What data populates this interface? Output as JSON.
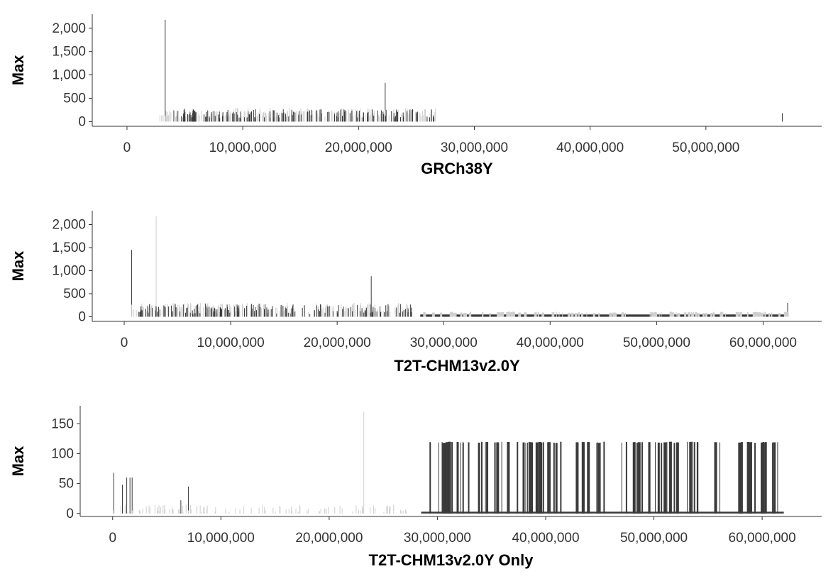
{
  "chart_data": [
    {
      "type": "bar",
      "xlabel": "GRCh38Y",
      "ylabel": "Max",
      "xlim": [
        -3000000,
        60000000
      ],
      "ylim": [
        -100,
        2300
      ],
      "x_ticks": [
        0,
        10000000,
        20000000,
        30000000,
        40000000,
        50000000
      ],
      "x_tick_labels": [
        "0",
        "10,000,000",
        "20,000,000",
        "30,000,000",
        "40,000,000",
        "50,000,000"
      ],
      "y_ticks": [
        0,
        500,
        1000,
        1500,
        2000
      ],
      "y_tick_labels": [
        "0",
        "500",
        "1,000",
        "1,500",
        "2,000"
      ],
      "grid": false,
      "colors": {
        "dark": "#3a3a3a",
        "light": "#cfcfcf"
      },
      "series": [
        {
          "x": [
            3300000,
            22300000,
            56600000
          ],
          "values": [
            2180,
            830,
            180
          ]
        },
        {
          "range": [
            2800000,
            26700000
          ],
          "count": 220,
          "min": 100,
          "max": 290,
          "seed": 11
        },
        {
          "range": [
            4000000,
            26500000
          ],
          "count": 160,
          "min": 80,
          "max": 270,
          "seed": 23
        }
      ]
    },
    {
      "type": "bar",
      "xlabel": "T2T-CHM13v2.0Y",
      "ylabel": "Max",
      "xlim": [
        -3000000,
        65500000
      ],
      "ylim": [
        -100,
        2300
      ],
      "x_ticks": [
        0,
        10000000,
        20000000,
        30000000,
        40000000,
        50000000,
        60000000
      ],
      "x_tick_labels": [
        "0",
        "10,000,000",
        "20,000,000",
        "30,000,000",
        "40,000,000",
        "50,000,000",
        "60,000,000"
      ],
      "y_ticks": [
        0,
        500,
        1000,
        1500,
        2000
      ],
      "y_tick_labels": [
        "0",
        "500",
        "1,000",
        "1,500",
        "2,000"
      ],
      "grid": false,
      "colors": {
        "dark": "#3a3a3a",
        "light": "#cfcfcf"
      },
      "series": [
        {
          "x": [
            700000,
            3000000,
            23200000,
            62300000
          ],
          "values": [
            1450,
            2180,
            880,
            300
          ]
        },
        {
          "range": [
            300000,
            27200000
          ],
          "count": 200,
          "min": 100,
          "max": 300,
          "seed": 37
        },
        {
          "range": [
            1000000,
            27200000
          ],
          "count": 160,
          "min": 60,
          "max": 280,
          "seed": 41
        },
        {
          "range": [
            27800000,
            62200000
          ],
          "baseline": 50,
          "count": 120,
          "min": 80,
          "max": 110,
          "seed": 53
        }
      ]
    },
    {
      "type": "bar",
      "xlabel": "T2T-CHM13v2.0Y Only",
      "ylabel": "Max",
      "xlim": [
        -3000000,
        65500000
      ],
      "ylim": [
        -5,
        180
      ],
      "x_ticks": [
        0,
        10000000,
        20000000,
        30000000,
        40000000,
        50000000,
        60000000
      ],
      "x_tick_labels": [
        "0",
        "10,000,000",
        "20,000,000",
        "30,000,000",
        "40,000,000",
        "50,000,000",
        "60,000,000"
      ],
      "y_ticks": [
        0,
        50,
        100,
        150
      ],
      "y_tick_labels": [
        "0",
        "50",
        "100",
        "150"
      ],
      "grid": false,
      "colors": {
        "dark": "#3a3a3a",
        "light": "#cfcfcf"
      },
      "series": [
        {
          "x": [
            100000,
            900000,
            1300000,
            1600000,
            1800000,
            6300000,
            7000000,
            23200000
          ],
          "values": [
            68,
            48,
            60,
            60,
            60,
            22,
            45,
            170
          ]
        },
        {
          "range": [
            100000,
            27400000
          ],
          "count": 110,
          "min": 2,
          "max": 15,
          "seed": 67
        },
        {
          "range": [
            28500000,
            62000000
          ],
          "baseline": 3,
          "count": 95,
          "min": 118,
          "max": 120,
          "seed": 71
        }
      ]
    }
  ]
}
